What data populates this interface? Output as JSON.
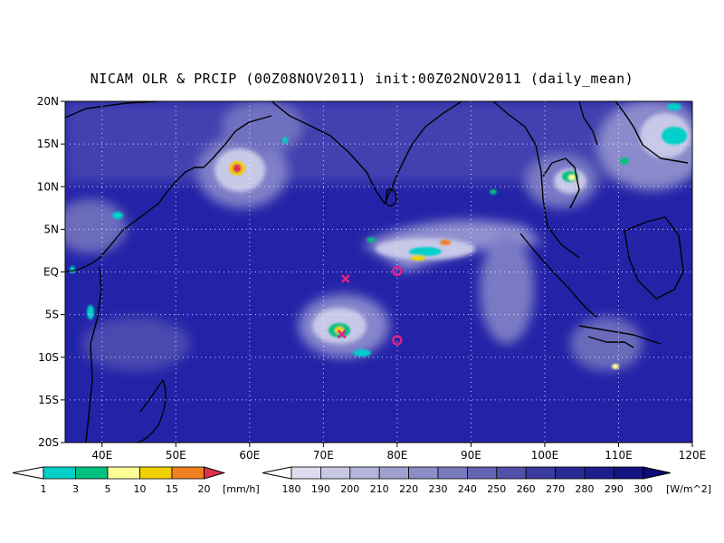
{
  "title": "NICAM OLR & PRCIP (00Z08NOV2011) init:00Z02NOV2011 (daily_mean)",
  "map": {
    "lon_range": [
      35,
      120
    ],
    "lat_range": [
      -20,
      20
    ],
    "lat_ticks": [
      {
        "value": 20,
        "label": "20N"
      },
      {
        "value": 15,
        "label": "15N"
      },
      {
        "value": 10,
        "label": "10N"
      },
      {
        "value": 5,
        "label": "5N"
      },
      {
        "value": 0,
        "label": "EQ"
      },
      {
        "value": -5,
        "label": "5S"
      },
      {
        "value": -10,
        "label": "10S"
      },
      {
        "value": -15,
        "label": "15S"
      },
      {
        "value": -20,
        "label": "20S"
      }
    ],
    "lon_ticks": [
      {
        "value": 40,
        "label": "40E"
      },
      {
        "value": 50,
        "label": "50E"
      },
      {
        "value": 60,
        "label": "60E"
      },
      {
        "value": 70,
        "label": "70E"
      },
      {
        "value": 80,
        "label": "80E"
      },
      {
        "value": 90,
        "label": "90E"
      },
      {
        "value": 100,
        "label": "100E"
      },
      {
        "value": 110,
        "label": "110E"
      },
      {
        "value": 120,
        "label": "120E"
      }
    ],
    "grid": "dotted",
    "background_color": "#2323a8",
    "markers": [
      {
        "type": "cross",
        "lon": 73,
        "lat": -0.8,
        "color": "#e0208c"
      },
      {
        "type": "circle",
        "lon": 80,
        "lat": 0.1,
        "color": "#e0208c"
      },
      {
        "type": "cross",
        "lon": 72.5,
        "lat": -7.3,
        "color": "#e0208c"
      },
      {
        "type": "circle",
        "lon": 80,
        "lat": -8,
        "color": "#e0208c"
      }
    ]
  },
  "precip_colorbar": {
    "unit": "[mm/h]",
    "labels": [
      "1",
      "3",
      "5",
      "10",
      "15",
      "20"
    ],
    "colors": [
      "#00d0c8",
      "#00c080",
      "#ffff9a",
      "#f0d000",
      "#f08020",
      "#e03050"
    ]
  },
  "olr_colorbar": {
    "unit": "[W/m^2]",
    "labels": [
      "180",
      "190",
      "200",
      "210",
      "220",
      "230",
      "240",
      "250",
      "260",
      "270",
      "280",
      "290",
      "300"
    ],
    "colors": [
      "#f0f0f8",
      "#dcdcee",
      "#c8c8e4",
      "#b4b4da",
      "#a0a0d0",
      "#8c8cc6",
      "#7878bc",
      "#6464b2",
      "#5050a8",
      "#3c3c9e",
      "#2a2a96",
      "#1e1e8c",
      "#141482",
      "#0c0c78"
    ]
  }
}
